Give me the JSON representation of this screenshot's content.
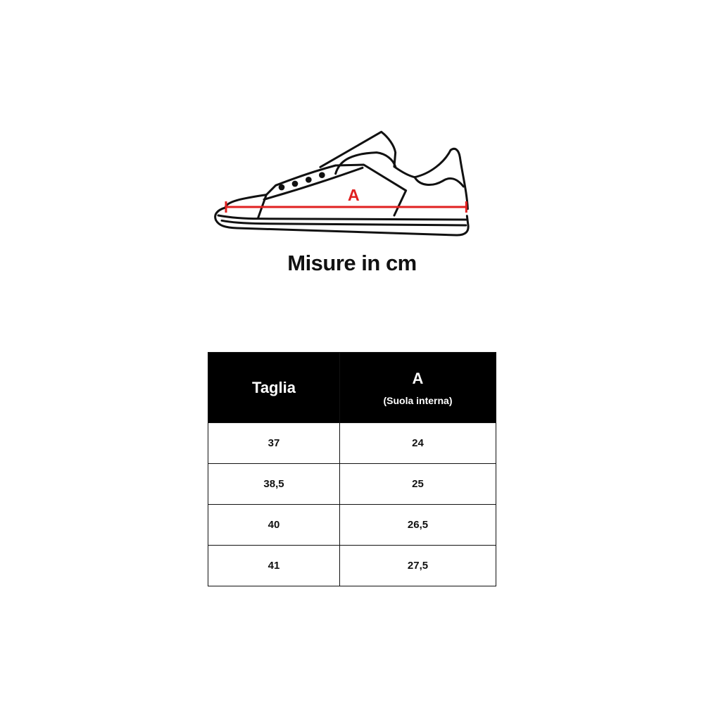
{
  "diagram": {
    "measure_label": "A",
    "measure_color": "#e02020"
  },
  "title": "Misure in cm",
  "table": {
    "headers": {
      "size": "Taglia",
      "a": "A",
      "a_sub": "(Suola interna)"
    },
    "rows": [
      {
        "size": "37",
        "a": "24"
      },
      {
        "size": "38,5",
        "a": "25"
      },
      {
        "size": "40",
        "a": "26,5"
      },
      {
        "size": "41",
        "a": "27,5"
      }
    ]
  }
}
